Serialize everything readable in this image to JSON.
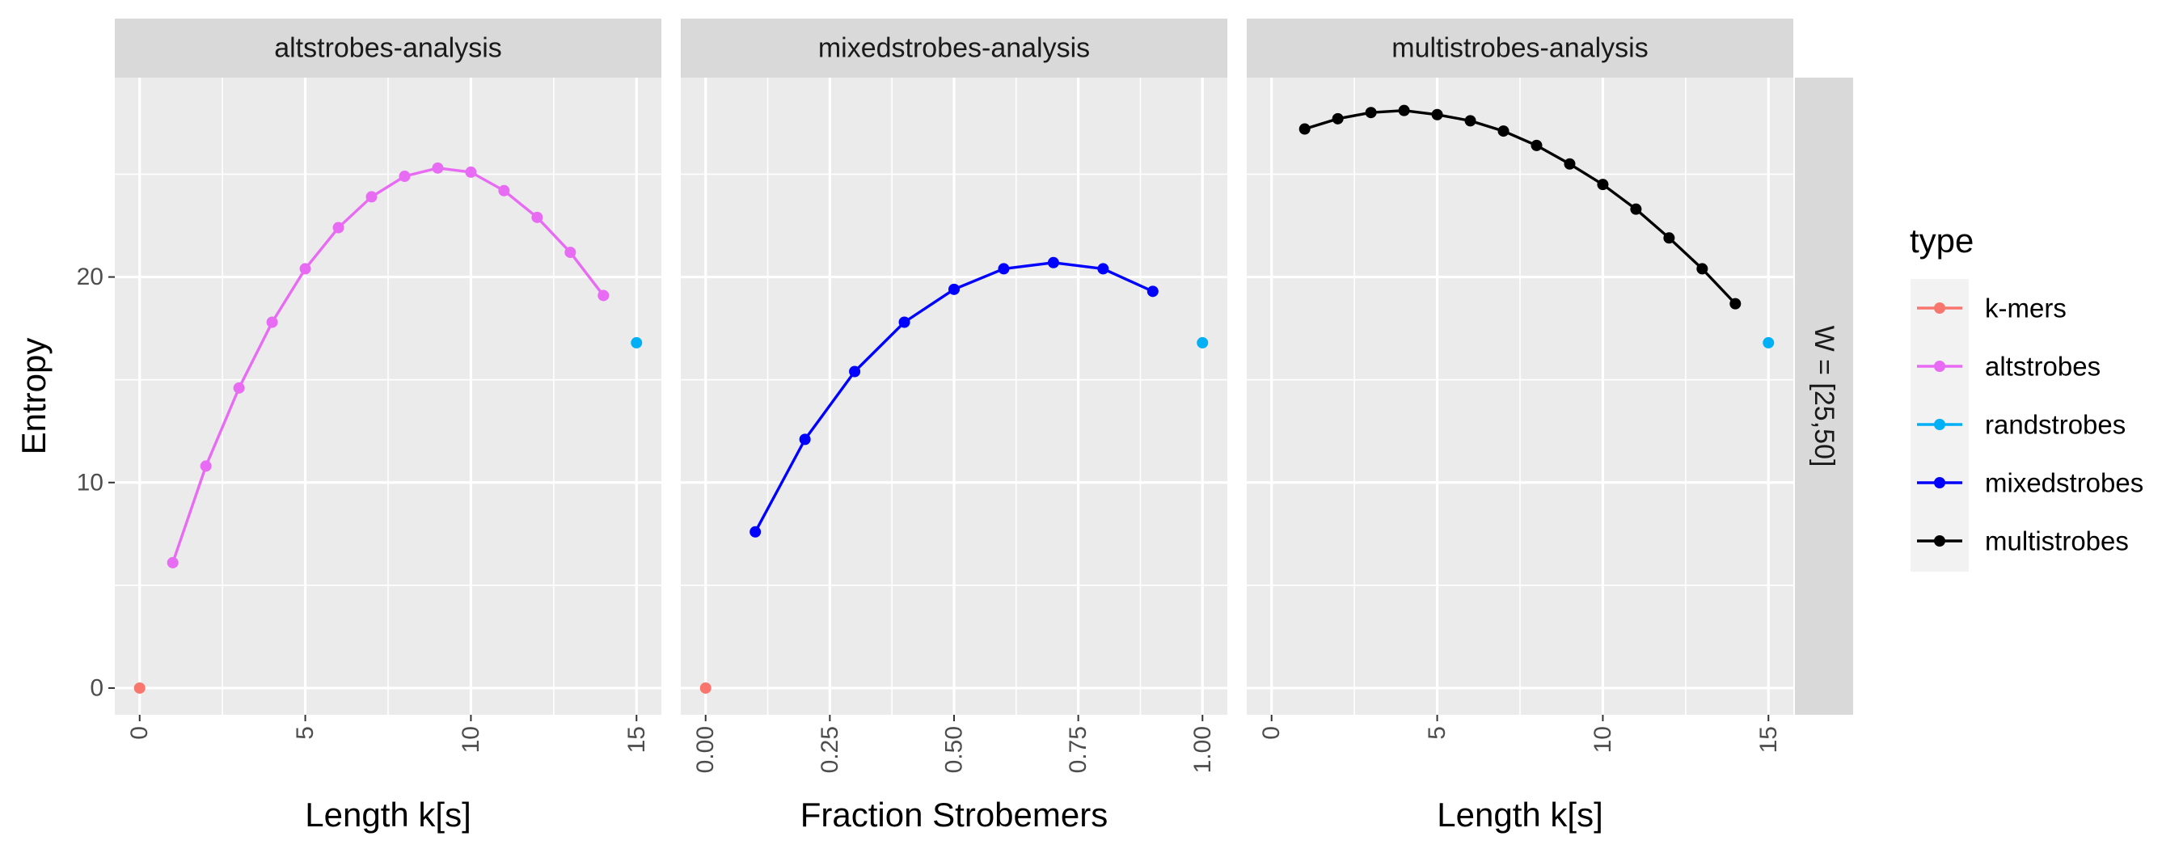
{
  "chart_data": {
    "type": "line",
    "ylabel": "Entropy",
    "ylim": [
      -1.3,
      29.7
    ],
    "yticks": [
      0,
      10,
      20
    ],
    "row_strip": "W = [25,50]",
    "grid": true,
    "legend": {
      "title": "type",
      "placement": "right",
      "entries": [
        {
          "name": "k-mers",
          "color": "#F8766D"
        },
        {
          "name": "altstrobes",
          "color": "#E76BF3"
        },
        {
          "name": "randstrobes",
          "color": "#00B0F6"
        },
        {
          "name": "mixedstrobes",
          "color": "#0000FF"
        },
        {
          "name": "multistrobes",
          "color": "#000000"
        }
      ]
    },
    "panels": [
      {
        "strip": "altstrobes-analysis",
        "xlabel": "Length k[s]",
        "xlim": [
          -0.75,
          15.75
        ],
        "xticks": [
          0,
          5,
          10,
          15
        ],
        "xtick_labels": [
          "0",
          "5",
          "10",
          "15"
        ],
        "series": [
          {
            "name": "k-mers",
            "color": "#F8766D",
            "line": false,
            "x": [
              0
            ],
            "y": [
              0
            ]
          },
          {
            "name": "altstrobes",
            "color": "#E76BF3",
            "line": true,
            "x": [
              1,
              2,
              3,
              4,
              5,
              6,
              7,
              8,
              9,
              10,
              11,
              12,
              13,
              14
            ],
            "y": [
              6.1,
              10.8,
              14.6,
              17.8,
              20.4,
              22.4,
              23.9,
              24.9,
              25.3,
              25.1,
              24.2,
              22.9,
              21.2,
              19.1
            ]
          },
          {
            "name": "randstrobes",
            "color": "#00B0F6",
            "line": false,
            "x": [
              15
            ],
            "y": [
              16.8
            ]
          }
        ]
      },
      {
        "strip": "mixedstrobes-analysis",
        "xlabel": "Fraction Strobemers",
        "xlim": [
          -0.05,
          1.05
        ],
        "xticks": [
          0,
          0.25,
          0.5,
          0.75,
          1
        ],
        "xtick_labels": [
          "0.00",
          "0.25",
          "0.50",
          "0.75",
          "1.00"
        ],
        "series": [
          {
            "name": "k-mers",
            "color": "#F8766D",
            "line": false,
            "x": [
              0
            ],
            "y": [
              0
            ]
          },
          {
            "name": "mixedstrobes",
            "color": "#0000FF",
            "line": true,
            "x": [
              0.1,
              0.2,
              0.3,
              0.4,
              0.5,
              0.6,
              0.7,
              0.8,
              0.9
            ],
            "y": [
              7.6,
              12.1,
              15.4,
              17.8,
              19.4,
              20.4,
              20.7,
              20.4,
              19.3
            ]
          },
          {
            "name": "randstrobes",
            "color": "#00B0F6",
            "line": false,
            "x": [
              1
            ],
            "y": [
              16.8
            ]
          }
        ]
      },
      {
        "strip": "multistrobes-analysis",
        "xlabel": "Length k[s]",
        "xlim": [
          -0.75,
          15.75
        ],
        "xticks": [
          0,
          5,
          10,
          15
        ],
        "xtick_labels": [
          "0",
          "5",
          "10",
          "15"
        ],
        "series": [
          {
            "name": "multistrobes",
            "color": "#000000",
            "line": true,
            "x": [
              1,
              2,
              3,
              4,
              5,
              6,
              7,
              8,
              9,
              10,
              11,
              12,
              13,
              14
            ],
            "y": [
              27.2,
              27.7,
              28.0,
              28.1,
              27.9,
              27.6,
              27.1,
              26.4,
              25.5,
              24.5,
              23.3,
              21.9,
              20.4,
              18.7
            ]
          },
          {
            "name": "randstrobes",
            "color": "#00B0F6",
            "line": false,
            "x": [
              15
            ],
            "y": [
              16.8
            ]
          }
        ]
      }
    ]
  }
}
